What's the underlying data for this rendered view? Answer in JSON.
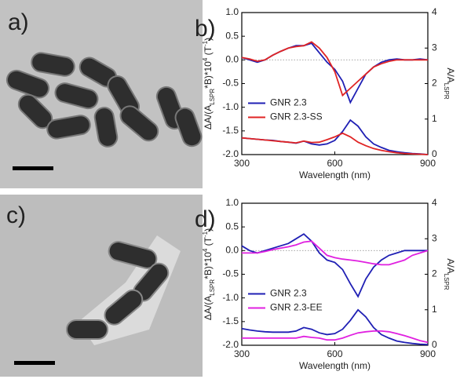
{
  "images": [
    {
      "label": "a)"
    },
    {
      "label": "c)"
    }
  ],
  "chart_data": [
    {
      "type": "line",
      "panel_label": "b)",
      "xlabel": "Wavelength (nm)",
      "ylabel_parts": [
        "ΔA/(A",
        "LSPR",
        "*B)*10",
        "4",
        " (T",
        "-1",
        ")"
      ],
      "y2label_parts": [
        "A/A",
        "LSPR"
      ],
      "x": [
        300,
        325,
        350,
        375,
        400,
        425,
        450,
        475,
        500,
        525,
        550,
        575,
        600,
        625,
        650,
        675,
        700,
        725,
        750,
        775,
        800,
        825,
        850,
        875,
        900
      ],
      "xlim": [
        300,
        900
      ],
      "xticks": [
        300,
        600,
        900
      ],
      "ylim": [
        -2,
        1
      ],
      "yticks": [
        {
          "value": -2,
          "label": "-2.0"
        },
        {
          "value": -1.5,
          "label": "-1.5"
        },
        {
          "value": -1,
          "label": "-1.0"
        },
        {
          "value": -0.5,
          "label": "-0.5"
        },
        {
          "value": 0,
          "label": "0.0"
        },
        {
          "value": 0.5,
          "label": "0.5"
        },
        {
          "value": 1,
          "label": "1.0"
        }
      ],
      "y2lim": [
        0,
        4
      ],
      "y2ticks": [
        0,
        1,
        2,
        3,
        4
      ],
      "reference_line": 0,
      "series": [
        {
          "name": "GNR 2.3",
          "color": "#1f1fb4",
          "values": [
            0.05,
            0.0,
            -0.05,
            0.0,
            0.1,
            0.18,
            0.25,
            0.3,
            0.3,
            0.35,
            0.15,
            -0.05,
            -0.2,
            -0.45,
            -0.9,
            -0.6,
            -0.3,
            -0.15,
            -0.05,
            0.0,
            0.02,
            0.0,
            0.0,
            0.02,
            0.0
          ]
        },
        {
          "name": "GNR 2.3-SS",
          "color": "#e02424",
          "values": [
            0.05,
            0.02,
            -0.03,
            0.0,
            0.1,
            0.18,
            0.25,
            0.28,
            0.3,
            0.38,
            0.25,
            0.05,
            -0.25,
            -0.75,
            -0.6,
            -0.45,
            -0.3,
            -0.15,
            -0.08,
            -0.03,
            0.0,
            0.0,
            0.0,
            0.0,
            0.0
          ]
        },
        {
          "color": "#1f1fb4",
          "axis": "y2",
          "values": [
            0.47,
            0.45,
            0.43,
            0.41,
            0.4,
            0.37,
            0.35,
            0.32,
            0.38,
            0.3,
            0.27,
            0.3,
            0.4,
            0.65,
            0.97,
            0.8,
            0.5,
            0.3,
            0.2,
            0.12,
            0.08,
            0.05,
            0.03,
            0.02,
            0.0
          ]
        },
        {
          "color": "#e02424",
          "axis": "y2",
          "values": [
            0.47,
            0.45,
            0.43,
            0.41,
            0.39,
            0.37,
            0.35,
            0.33,
            0.38,
            0.34,
            0.35,
            0.42,
            0.5,
            0.6,
            0.5,
            0.35,
            0.25,
            0.17,
            0.12,
            0.08,
            0.05,
            0.03,
            0.02,
            0.01,
            0.0
          ]
        }
      ]
    },
    {
      "type": "line",
      "panel_label": "d)",
      "xlabel": "Wavelength (nm)",
      "ylabel_parts": [
        "ΔA/(A",
        "LSPR",
        "*B)*10",
        "4",
        " (T",
        "-1",
        ")"
      ],
      "y2label_parts": [
        "A/A",
        "LSPR"
      ],
      "x": [
        300,
        325,
        350,
        375,
        400,
        425,
        450,
        475,
        500,
        525,
        550,
        575,
        600,
        625,
        650,
        675,
        700,
        725,
        750,
        775,
        800,
        825,
        850,
        875,
        900
      ],
      "xlim": [
        300,
        900
      ],
      "xticks": [
        300,
        600,
        900
      ],
      "ylim": [
        -2,
        1
      ],
      "yticks": [
        {
          "value": -2,
          "label": "-2.0"
        },
        {
          "value": -1.5,
          "label": "-1.5"
        },
        {
          "value": -1,
          "label": "-1.0"
        },
        {
          "value": -0.5,
          "label": "-0.5"
        },
        {
          "value": 0,
          "label": "0.0"
        },
        {
          "value": 0.5,
          "label": "0.5"
        },
        {
          "value": 1,
          "label": "1.0"
        }
      ],
      "y2lim": [
        0,
        4
      ],
      "y2ticks": [
        0,
        1,
        2,
        3,
        4
      ],
      "reference_line": 0,
      "series": [
        {
          "name": "GNR 2.3",
          "color": "#1f1fb4",
          "values": [
            0.1,
            0.0,
            -0.05,
            0.0,
            0.05,
            0.1,
            0.15,
            0.25,
            0.35,
            0.2,
            -0.05,
            -0.2,
            -0.25,
            -0.4,
            -0.7,
            -0.97,
            -0.6,
            -0.35,
            -0.2,
            -0.1,
            -0.05,
            0.0,
            0.0,
            0.0,
            0.0
          ]
        },
        {
          "name": "GNR 2.3-EE",
          "color": "#e020e0",
          "values": [
            -0.05,
            -0.05,
            -0.05,
            -0.02,
            0.02,
            0.05,
            0.08,
            0.12,
            0.18,
            0.2,
            0.05,
            -0.1,
            -0.15,
            -0.18,
            -0.2,
            -0.22,
            -0.25,
            -0.28,
            -0.3,
            -0.3,
            -0.25,
            -0.2,
            -0.1,
            -0.05,
            0.0
          ]
        },
        {
          "color": "#1f1fb4",
          "axis": "y2",
          "values": [
            0.47,
            0.43,
            0.4,
            0.38,
            0.37,
            0.37,
            0.37,
            0.4,
            0.5,
            0.45,
            0.35,
            0.3,
            0.33,
            0.45,
            0.7,
            1.0,
            0.8,
            0.5,
            0.3,
            0.2,
            0.12,
            0.08,
            0.05,
            0.03,
            0.02
          ]
        },
        {
          "color": "#e020e0",
          "axis": "y2",
          "values": [
            0.2,
            0.2,
            0.2,
            0.2,
            0.2,
            0.2,
            0.2,
            0.2,
            0.25,
            0.22,
            0.2,
            0.15,
            0.15,
            0.2,
            0.28,
            0.35,
            0.38,
            0.4,
            0.4,
            0.38,
            0.33,
            0.27,
            0.2,
            0.13,
            0.08
          ]
        }
      ]
    }
  ]
}
